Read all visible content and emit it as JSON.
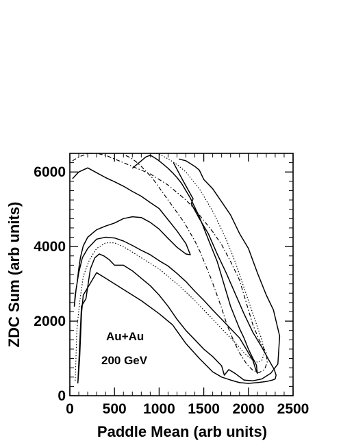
{
  "chart_data": {
    "type": "contour",
    "title": "",
    "xlabel": "Paddle Mean (arb units)",
    "ylabel": "ZDC Sum (arb units)",
    "xlim": [
      0,
      2500
    ],
    "ylim": [
      0,
      6500
    ],
    "xticks": [
      0,
      500,
      1000,
      1500,
      2000,
      2500
    ],
    "yticks": [
      0,
      2000,
      4000,
      6000
    ],
    "xtick_labels": [
      "0",
      "500",
      "1000",
      "1500",
      "2000",
      "2500"
    ],
    "ytick_labels": [
      "0",
      "2000",
      "4000",
      "6000"
    ],
    "grid": false,
    "annotations": [
      "Au+Au",
      "200 GeV"
    ],
    "series": [
      {
        "style": "solid",
        "level": "outer",
        "x": [
          1160,
          1260,
          1380,
          1360,
          1450,
          1550,
          1650,
          1750,
          1850,
          1950,
          2050,
          2150,
          2230,
          2290,
          2310,
          2300,
          2270,
          2200,
          2100,
          2000,
          1900,
          1800,
          1700,
          1600,
          1450,
          1300,
          1150,
          1000,
          800,
          600,
          400,
          300,
          150,
          130,
          110,
          90,
          130,
          180,
          230,
          280,
          330,
          380,
          440,
          500,
          600,
          700,
          800,
          900,
          1000,
          1100,
          1200,
          1300,
          1400,
          1500,
          1600,
          1700,
          1730,
          1780,
          1850,
          1950,
          2050,
          2150,
          2250,
          2330,
          2350,
          2330,
          2280,
          2200,
          2100,
          2000,
          1900,
          1800,
          1700,
          1600,
          1500,
          1450,
          1400,
          1300,
          1220
        ],
        "y": [
          6250,
          5800,
          5280,
          5150,
          4750,
          4350,
          3800,
          3300,
          2750,
          2200,
          1700,
          1300,
          950,
          700,
          550,
          450,
          420,
          380,
          350,
          330,
          350,
          420,
          500,
          640,
          1000,
          1400,
          1900,
          2200,
          2550,
          2850,
          3150,
          3300,
          2700,
          2200,
          1000,
          340,
          2400,
          2600,
          3400,
          3700,
          3800,
          3750,
          3650,
          3500,
          3500,
          3350,
          3150,
          2950,
          2700,
          2400,
          2050,
          1750,
          1500,
          1250,
          1050,
          800,
          550,
          700,
          600,
          420,
          400,
          450,
          600,
          850,
          1600,
          1800,
          2300,
          2700,
          3300,
          3950,
          4350,
          4850,
          5200,
          5550,
          5800,
          6050,
          6150,
          6300,
          6350
        ]
      },
      {
        "style": "solid",
        "level": "inner",
        "x": [
          30,
          100,
          200,
          300,
          400,
          500,
          600,
          700,
          800,
          900,
          1000,
          1100,
          1200,
          1300,
          1350,
          1300,
          1200,
          1100,
          1000,
          900,
          800,
          700,
          600,
          500,
          400,
          300,
          200,
          150,
          120,
          100,
          80,
          60,
          50,
          70,
          100,
          140,
          200,
          300,
          400,
          500,
          600,
          700,
          800,
          900,
          1000,
          1100,
          1200,
          1300,
          1400,
          1500,
          1600,
          1700,
          1800,
          1900,
          1950,
          2000,
          2050,
          2080,
          2100,
          2090,
          2050,
          2000,
          1950,
          1900,
          1850,
          1800,
          1750,
          1700,
          1650,
          1600,
          1550,
          1500,
          1450,
          1400,
          1350,
          1300,
          1250,
          1200,
          1150,
          1100,
          1050,
          1000,
          950,
          900,
          850,
          800,
          750,
          700
        ],
        "y": [
          5820,
          6000,
          6110,
          5980,
          5850,
          5740,
          5620,
          5480,
          5350,
          5180,
          5020,
          4720,
          4420,
          4080,
          3780,
          3800,
          3980,
          4220,
          4470,
          4650,
          4780,
          4800,
          4750,
          4630,
          4550,
          4450,
          4250,
          4020,
          3720,
          3400,
          3000,
          2700,
          2400,
          2850,
          3300,
          3700,
          3950,
          4200,
          4250,
          4230,
          4150,
          4030,
          3900,
          3780,
          3620,
          3480,
          3280,
          3060,
          2800,
          2560,
          2300,
          2050,
          1800,
          1550,
          1350,
          1150,
          950,
          720,
          600,
          820,
          1000,
          1250,
          1550,
          1800,
          2100,
          2400,
          2800,
          3200,
          3600,
          3900,
          4200,
          4500,
          4800,
          5050,
          5300,
          5500,
          5700,
          5850,
          5980,
          6100,
          6200,
          6300,
          6380,
          6450,
          6400,
          6300,
          6200,
          6100
        ]
      },
      {
        "style": "dashdot",
        "level": "middle",
        "x": [
          30,
          100,
          200,
          300,
          400,
          500,
          600,
          700,
          800,
          900,
          1000,
          1100,
          1200,
          1300,
          1400,
          1500,
          1600,
          1700,
          1800,
          1900,
          1950,
          2000,
          2050,
          2120,
          2200,
          2210,
          2180,
          2120,
          2050,
          1980,
          1900,
          1830,
          1760,
          1700,
          1640,
          1580,
          1520,
          1460,
          1400,
          1340,
          1280,
          1220,
          1160,
          1100,
          1040,
          980,
          920,
          860,
          800,
          740,
          680,
          620
        ],
        "y": [
          6300,
          6400,
          6500,
          6500,
          6450,
          6350,
          6250,
          6150,
          6050,
          5950,
          5800,
          5650,
          5450,
          5250,
          5000,
          4700,
          4400,
          4050,
          3600,
          3100,
          2700,
          2300,
          1900,
          1500,
          1150,
          900,
          700,
          620,
          680,
          850,
          1150,
          1500,
          1900,
          2350,
          2750,
          3150,
          3500,
          3850,
          4150,
          4400,
          4650,
          4850,
          5050,
          5250,
          5450,
          5650,
          5850,
          6000,
          6150,
          6280,
          6380,
          6450
        ]
      },
      {
        "style": "dotted",
        "level": "inner-dotted",
        "x": [
          60,
          80,
          110,
          150,
          220,
          300,
          400,
          500,
          600,
          700,
          800,
          900,
          1000,
          1100,
          1200,
          1300,
          1400,
          1500,
          1600,
          1700,
          1800,
          1900,
          1950,
          2000,
          2050,
          2100,
          2150,
          2180,
          2150,
          2100,
          2050,
          2000,
          1950,
          1900,
          1850,
          1800,
          1750,
          1700,
          1650,
          1600,
          1550,
          1500,
          1450,
          1400,
          1350,
          1300,
          1250,
          1200,
          1150,
          1100,
          1050,
          1000,
          950,
          900
        ],
        "y": [
          400,
          1800,
          2500,
          3200,
          3650,
          3950,
          4100,
          4100,
          4000,
          3850,
          3700,
          3550,
          3400,
          3200,
          3000,
          2780,
          2550,
          2300,
          2050,
          1800,
          1550,
          1300,
          1150,
          1050,
          950,
          900,
          950,
          1150,
          1500,
          1850,
          2200,
          2550,
          2900,
          3250,
          3600,
          3900,
          4200,
          4450,
          4700,
          4950,
          5150,
          5350,
          5550,
          5700,
          5850,
          6000,
          6100,
          6200,
          6280,
          6350,
          6420,
          6480,
          6500,
          6500
        ]
      }
    ]
  }
}
